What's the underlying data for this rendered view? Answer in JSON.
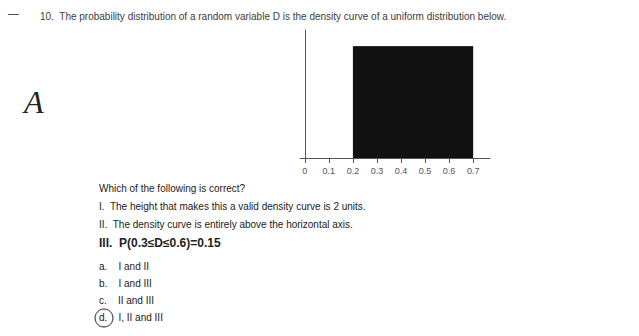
{
  "chart_data": {
    "type": "area",
    "title": "10.  The probability distribution of a random variable D is the density curve of a uniform distribution below.",
    "x": [
      0.2,
      0.7
    ],
    "values": [
      2.0,
      2.0
    ],
    "color": "#111111",
    "xlim": [
      -0.02,
      0.77
    ],
    "xticks": [
      0,
      0.1,
      0.2,
      0.3,
      0.4,
      0.5,
      0.6,
      0.7
    ],
    "ylim": [
      0,
      2.3
    ],
    "tick_labels": "x",
    "grid": false,
    "annotations": [
      "—",
      "A",
      "Which of the following is correct?",
      "I.  The height that makes this a valid density curve is 2 units.",
      "II.  The density curve is entirely above the horizontal axis.",
      "III.  P(0.3≤D≤0.6)=0.15",
      "a.    I and II",
      "b.    I and III",
      "c.    II and III",
      "d.    I, II and III"
    ]
  }
}
